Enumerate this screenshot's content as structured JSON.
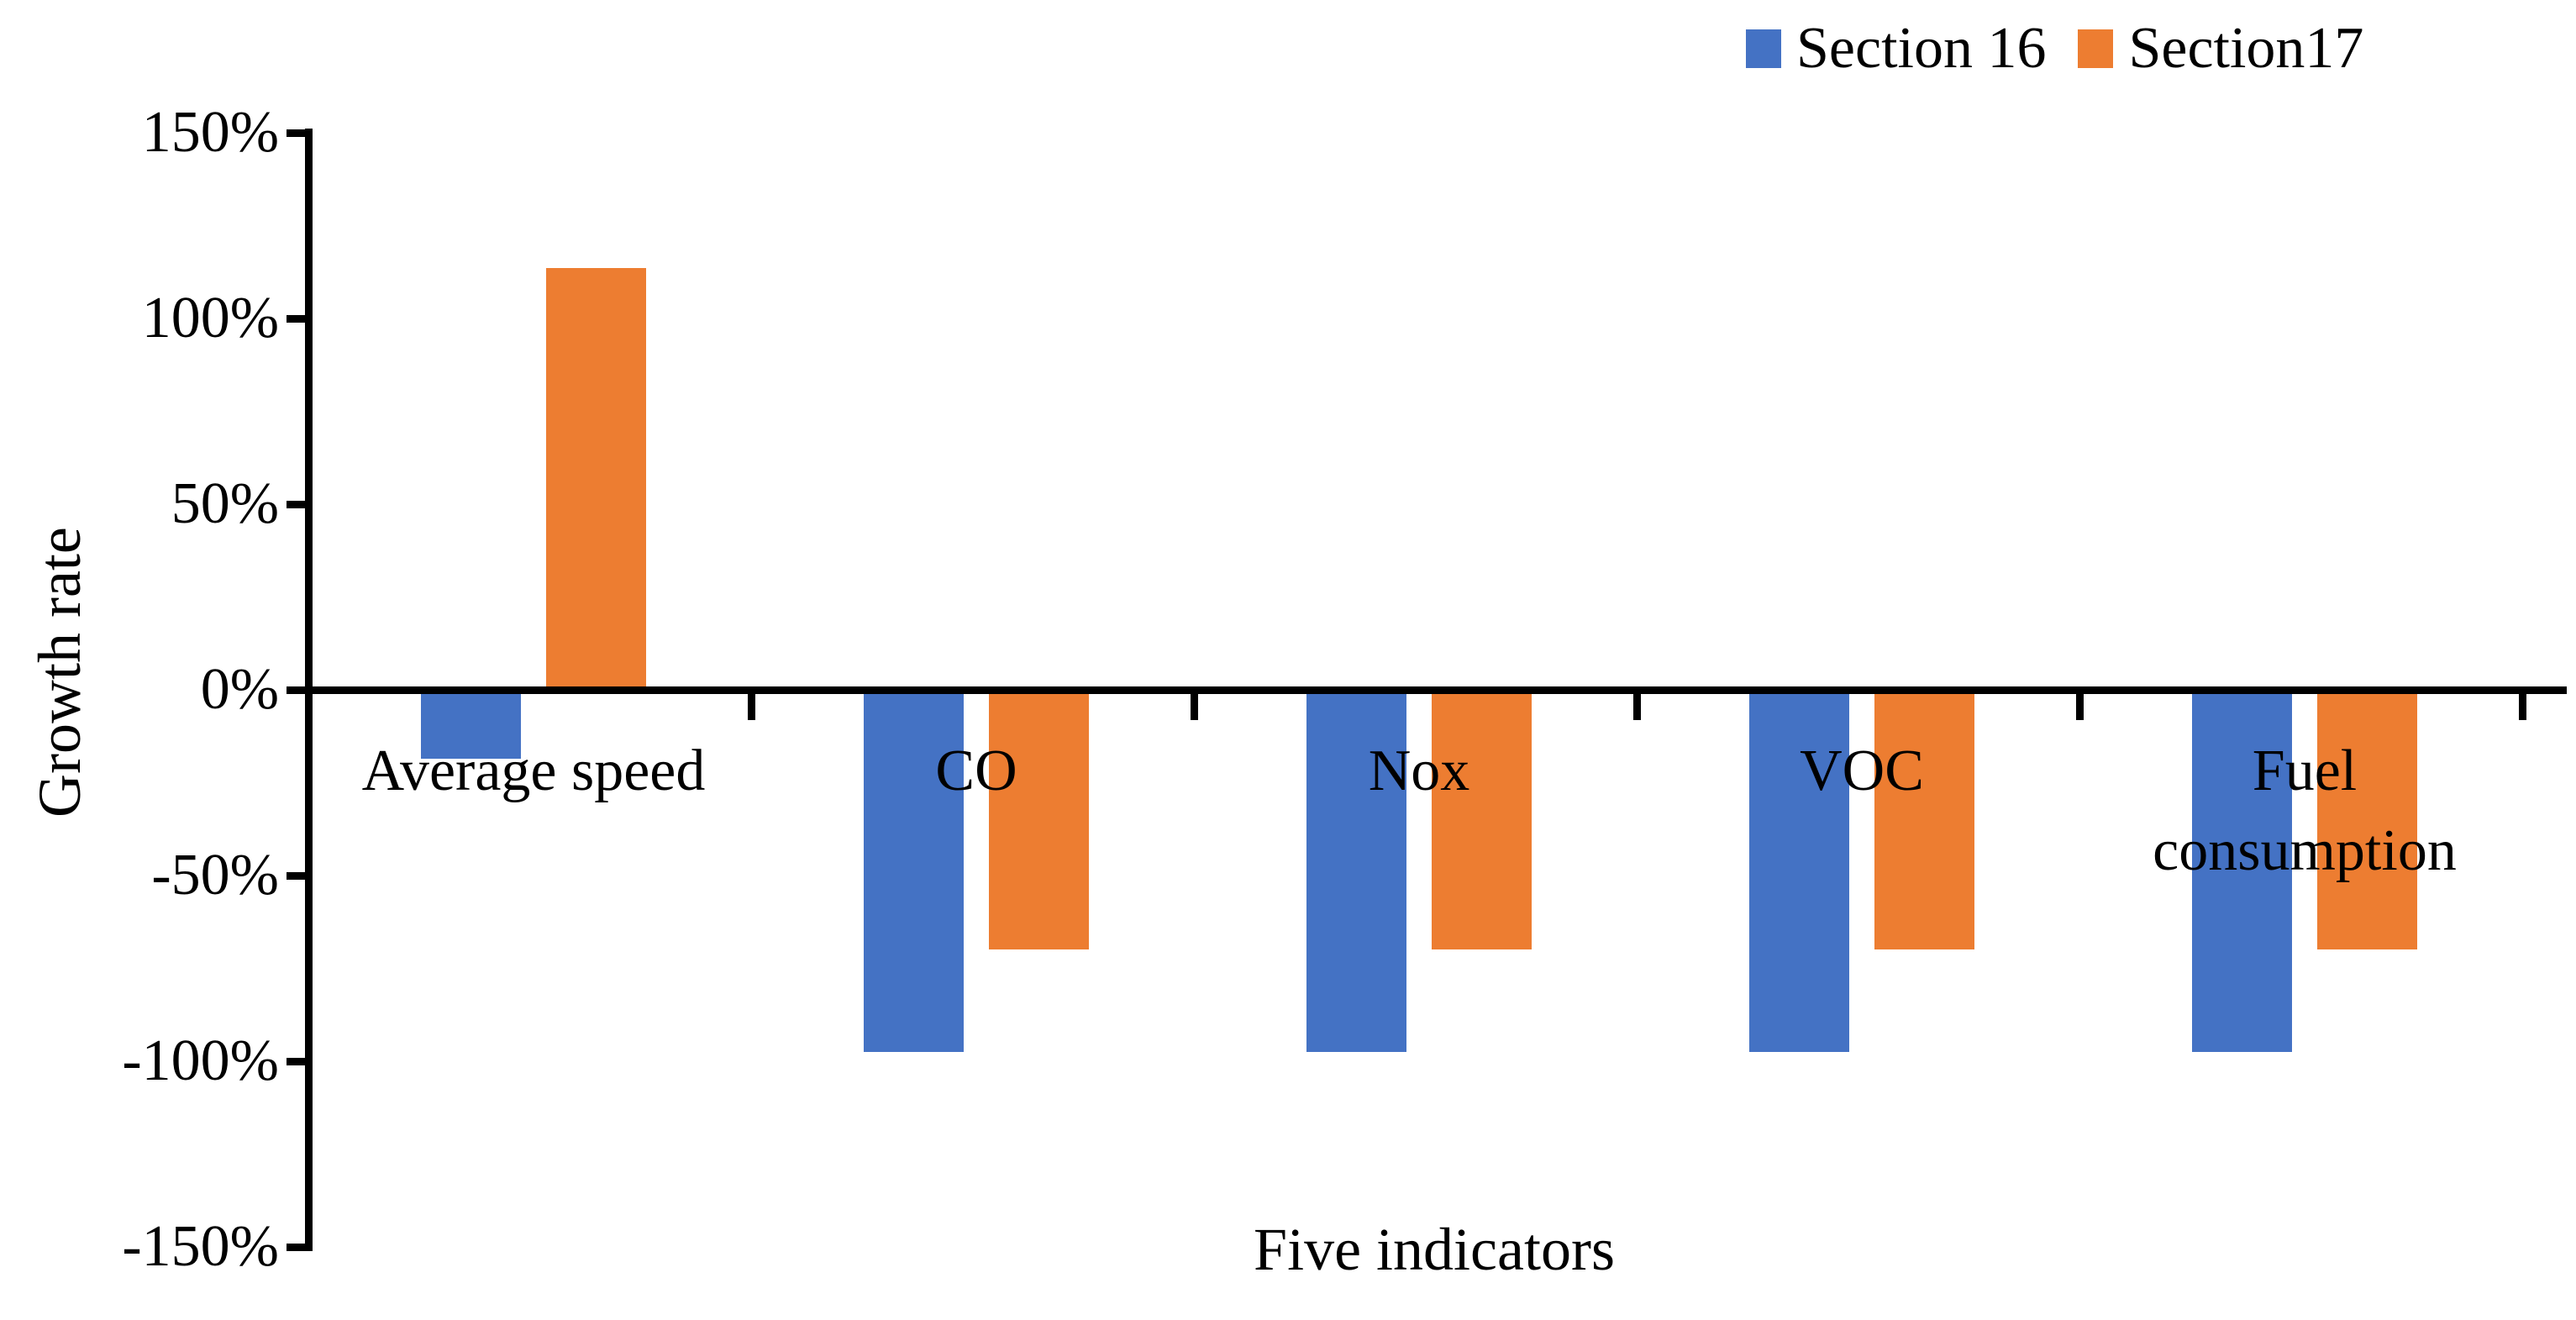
{
  "chart_data": {
    "type": "bar",
    "title": "",
    "categories": [
      "Average speed",
      "CO",
      "Nox",
      "VOC",
      "Fuel consumption"
    ],
    "series": [
      {
        "name": "Section 16",
        "color": "#4472C4",
        "values": [
          -18.6,
          -97.5,
          -97.5,
          -97.5,
          -97.5
        ]
      },
      {
        "name": "Section17",
        "color": "#ED7D31",
        "values": [
          113.6,
          -70,
          -70,
          -70,
          -70
        ]
      }
    ],
    "xlabel": "Five indicators",
    "ylabel": "Growth rate",
    "y_ticks": [
      {
        "label": "150%",
        "value": 150
      },
      {
        "label": "100%",
        "value": 100
      },
      {
        "label": "50%",
        "value": 50
      },
      {
        "label": "0%",
        "value": 0
      },
      {
        "label": "-50%",
        "value": -50
      },
      {
        "label": "-100%",
        "value": -100
      },
      {
        "label": "-150%",
        "value": -150
      }
    ],
    "ylim": [
      -150,
      150
    ],
    "grid": false,
    "legend_position": "top-right",
    "axis_color": "#000000",
    "text_color": "#000000",
    "background_color": "#FFFFFF"
  }
}
